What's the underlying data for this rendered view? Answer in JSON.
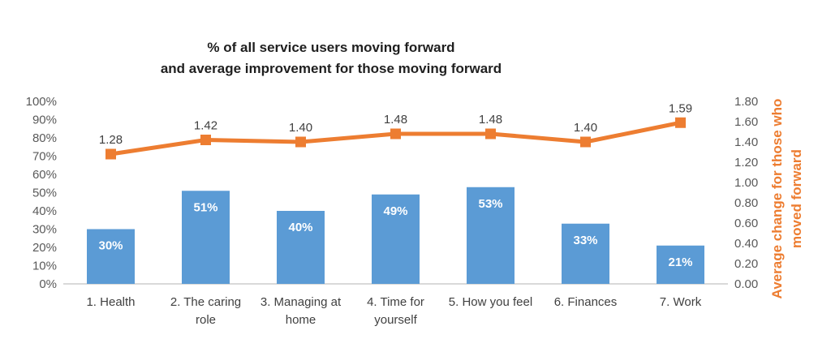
{
  "chart_data": {
    "type": "bar",
    "subtype": "combo-bar-line",
    "title": "% of all service users moving forward and average improvement for those moving forward",
    "title_lines": [
      "% of all service users moving forward",
      "and average improvement for those moving forward"
    ],
    "categories": [
      "1. Health",
      "2. The caring role",
      "3. Managing at home",
      "4. Time for yourself",
      "5. How you feel",
      "6. Finances",
      "7. Work"
    ],
    "category_label_lines": [
      [
        "1. Health"
      ],
      [
        "2. The caring",
        "role"
      ],
      [
        "3. Managing at",
        "home"
      ],
      [
        "4. Time for",
        "yourself"
      ],
      [
        "5. How you feel"
      ],
      [
        "6. Finances"
      ],
      [
        "7. Work"
      ]
    ],
    "series": [
      {
        "type": "bar",
        "axis": "left",
        "color": "#5B9BD5",
        "label_color": "#FFFFFF",
        "values": [
          30,
          51,
          40,
          49,
          53,
          33,
          21
        ],
        "labels": [
          "30%",
          "51%",
          "40%",
          "49%",
          "53%",
          "33%",
          "21%"
        ]
      },
      {
        "type": "line",
        "axis": "right",
        "color": "#ED7D31",
        "label_color": "#404040",
        "values": [
          1.28,
          1.42,
          1.4,
          1.48,
          1.48,
          1.4,
          1.59
        ],
        "labels": [
          "1.28",
          "1.42",
          "1.40",
          "1.48",
          "1.48",
          "1.40",
          "1.59"
        ]
      }
    ],
    "left_axis": {
      "min": 0,
      "max": 100,
      "step": 10,
      "tick_labels": [
        "0%",
        "10%",
        "20%",
        "30%",
        "40%",
        "50%",
        "60%",
        "70%",
        "80%",
        "90%",
        "100%"
      ],
      "tick_color": "#595959"
    },
    "right_axis": {
      "min": 0,
      "max": 1.8,
      "step": 0.2,
      "tick_labels": [
        "0.00",
        "0.20",
        "0.40",
        "0.60",
        "0.80",
        "1.00",
        "1.20",
        "1.40",
        "1.60",
        "1.80"
      ],
      "tick_color": "#595959",
      "title": "Average change for those who moved forward",
      "title_lines": [
        "Average change for those who",
        "moved forward"
      ],
      "title_color": "#ED7D31"
    },
    "x_axis": {
      "label_color": "#404040",
      "line_color": "#D9D9D9"
    },
    "legend": "none",
    "grid": false,
    "background": "#FFFFFF"
  }
}
